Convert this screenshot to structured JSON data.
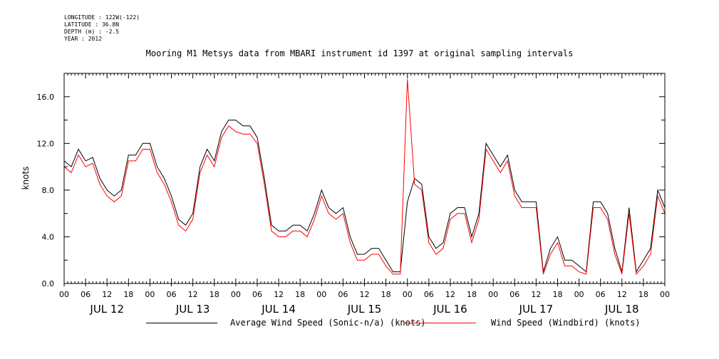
{
  "meta": {
    "longitude": "LONGITUDE : 122W(-122)",
    "latitude": "LATITUDE : 36.8N",
    "depth": "DEPTH (m) : -2.5",
    "year": "YEAR : 2012"
  },
  "chart_data": {
    "type": "line",
    "title": "Mooring M1 Metsys data from MBARI instrument id 1397 at original sampling intervals",
    "ylabel": "knots",
    "ylim": [
      0,
      18
    ],
    "yticks": [
      "0.0",
      "4.0",
      "8.0",
      "12.0",
      "16.0"
    ],
    "ytick_values": [
      0,
      4,
      8,
      12,
      16
    ],
    "x_hour_labels": [
      "00",
      "06",
      "12",
      "18",
      "00",
      "06",
      "12",
      "18",
      "00",
      "06",
      "12",
      "18",
      "00",
      "06",
      "12",
      "18",
      "00",
      "06",
      "12",
      "18",
      "00",
      "06",
      "12",
      "18",
      "00",
      "06",
      "12",
      "18",
      "00"
    ],
    "day_labels": [
      "JUL 12",
      "JUL 13",
      "JUL 14",
      "JUL 15",
      "JUL 16",
      "JUL 17",
      "JUL 18"
    ],
    "xlim_hours": [
      0,
      168
    ],
    "series": [
      {
        "name": "Average Wind Speed (Sonic-n/a) (knots)",
        "color": "#000000",
        "points": [
          [
            0,
            10.5
          ],
          [
            2,
            10
          ],
          [
            4,
            11.5
          ],
          [
            6,
            10.5
          ],
          [
            8,
            10.8
          ],
          [
            10,
            9
          ],
          [
            12,
            8
          ],
          [
            14,
            7.5
          ],
          [
            16,
            8
          ],
          [
            18,
            11
          ],
          [
            20,
            11
          ],
          [
            22,
            12
          ],
          [
            24,
            12
          ],
          [
            26,
            10
          ],
          [
            28,
            9
          ],
          [
            30,
            7.5
          ],
          [
            32,
            5.5
          ],
          [
            34,
            5
          ],
          [
            36,
            6
          ],
          [
            38,
            10
          ],
          [
            40,
            11.5
          ],
          [
            42,
            10.5
          ],
          [
            44,
            13
          ],
          [
            46,
            14
          ],
          [
            48,
            14
          ],
          [
            50,
            13.5
          ],
          [
            52,
            13.5
          ],
          [
            54,
            12.5
          ],
          [
            56,
            9
          ],
          [
            58,
            5
          ],
          [
            60,
            4.5
          ],
          [
            62,
            4.5
          ],
          [
            64,
            5
          ],
          [
            66,
            5
          ],
          [
            68,
            4.5
          ],
          [
            70,
            6
          ],
          [
            72,
            8
          ],
          [
            74,
            6.5
          ],
          [
            76,
            6
          ],
          [
            78,
            6.5
          ],
          [
            80,
            4
          ],
          [
            82,
            2.5
          ],
          [
            84,
            2.5
          ],
          [
            86,
            3
          ],
          [
            88,
            3
          ],
          [
            90,
            2
          ],
          [
            92,
            1
          ],
          [
            94,
            1
          ],
          [
            96,
            7
          ],
          [
            98,
            9
          ],
          [
            100,
            8.5
          ],
          [
            102,
            4
          ],
          [
            104,
            3
          ],
          [
            106,
            3.5
          ],
          [
            108,
            6
          ],
          [
            110,
            6.5
          ],
          [
            112,
            6.5
          ],
          [
            114,
            4
          ],
          [
            116,
            6
          ],
          [
            118,
            12
          ],
          [
            120,
            11
          ],
          [
            122,
            10
          ],
          [
            124,
            11
          ],
          [
            126,
            8
          ],
          [
            128,
            7
          ],
          [
            130,
            7
          ],
          [
            132,
            7
          ],
          [
            134,
            1
          ],
          [
            136,
            3
          ],
          [
            138,
            4
          ],
          [
            140,
            2
          ],
          [
            142,
            2
          ],
          [
            144,
            1.5
          ],
          [
            146,
            1
          ],
          [
            148,
            7
          ],
          [
            150,
            7
          ],
          [
            152,
            6
          ],
          [
            154,
            3
          ],
          [
            156,
            1
          ],
          [
            158,
            6.5
          ],
          [
            160,
            1
          ],
          [
            162,
            2
          ],
          [
            164,
            3
          ],
          [
            166,
            8
          ],
          [
            168,
            6.5
          ]
        ]
      },
      {
        "name": "Wind Speed (Windbird) (knots)",
        "color": "#ff0000",
        "points": [
          [
            0,
            10
          ],
          [
            2,
            9.5
          ],
          [
            4,
            11
          ],
          [
            6,
            10
          ],
          [
            8,
            10.3
          ],
          [
            10,
            8.5
          ],
          [
            12,
            7.5
          ],
          [
            14,
            7
          ],
          [
            16,
            7.5
          ],
          [
            18,
            10.5
          ],
          [
            20,
            10.5
          ],
          [
            22,
            11.5
          ],
          [
            24,
            11.5
          ],
          [
            26,
            9.5
          ],
          [
            28,
            8.5
          ],
          [
            30,
            7
          ],
          [
            32,
            5
          ],
          [
            34,
            4.5
          ],
          [
            36,
            5.5
          ],
          [
            38,
            9.5
          ],
          [
            40,
            11
          ],
          [
            42,
            10
          ],
          [
            44,
            12.5
          ],
          [
            46,
            13.5
          ],
          [
            48,
            13
          ],
          [
            50,
            12.8
          ],
          [
            52,
            12.8
          ],
          [
            54,
            12
          ],
          [
            56,
            8.5
          ],
          [
            58,
            4.5
          ],
          [
            60,
            4
          ],
          [
            62,
            4
          ],
          [
            64,
            4.5
          ],
          [
            66,
            4.5
          ],
          [
            68,
            4
          ],
          [
            70,
            5.5
          ],
          [
            72,
            7.5
          ],
          [
            74,
            6
          ],
          [
            76,
            5.5
          ],
          [
            78,
            6
          ],
          [
            80,
            3.5
          ],
          [
            82,
            2
          ],
          [
            84,
            2
          ],
          [
            86,
            2.5
          ],
          [
            88,
            2.5
          ],
          [
            90,
            1.5
          ],
          [
            92,
            0.8
          ],
          [
            94,
            0.8
          ],
          [
            96,
            17.5
          ],
          [
            98,
            8.5
          ],
          [
            100,
            8
          ],
          [
            102,
            3.5
          ],
          [
            104,
            2.5
          ],
          [
            106,
            3
          ],
          [
            108,
            5.5
          ],
          [
            110,
            6
          ],
          [
            112,
            6
          ],
          [
            114,
            3.5
          ],
          [
            116,
            5.5
          ],
          [
            118,
            11.5
          ],
          [
            120,
            10.5
          ],
          [
            122,
            9.5
          ],
          [
            124,
            10.5
          ],
          [
            126,
            7.5
          ],
          [
            128,
            6.5
          ],
          [
            130,
            6.5
          ],
          [
            132,
            6.5
          ],
          [
            134,
            0.8
          ],
          [
            136,
            2.5
          ],
          [
            138,
            3.5
          ],
          [
            140,
            1.5
          ],
          [
            142,
            1.5
          ],
          [
            144,
            1
          ],
          [
            146,
            0.8
          ],
          [
            148,
            6.5
          ],
          [
            150,
            6.5
          ],
          [
            152,
            5.5
          ],
          [
            154,
            2.5
          ],
          [
            156,
            0.8
          ],
          [
            158,
            6
          ],
          [
            160,
            0.8
          ],
          [
            162,
            1.5
          ],
          [
            164,
            2.5
          ],
          [
            166,
            7.5
          ],
          [
            168,
            6
          ]
        ]
      }
    ],
    "grid": false,
    "legend_position": "bottom"
  }
}
